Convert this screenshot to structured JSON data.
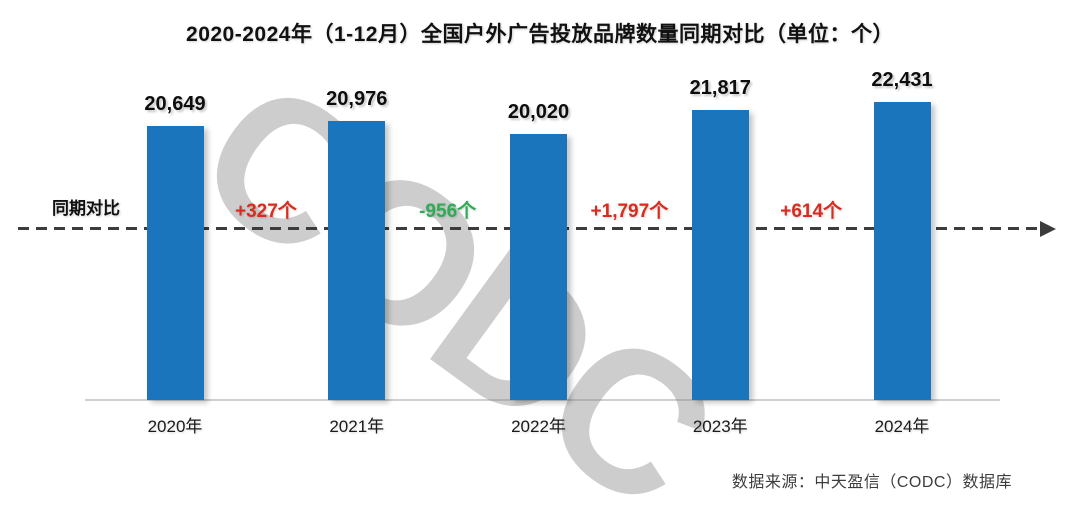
{
  "title": "2020-2024年（1-12月）全国户外广告投放品牌数量同期对比（单位：个）",
  "comparison_row_label": "同期对比",
  "source": "数据来源：中天盈信（CODC）数据库",
  "watermark": "CODC",
  "colors": {
    "bar": "#1a75bc",
    "increase": "#d92b1e",
    "decrease": "#2eac55",
    "dash": "#3c3c3c",
    "axis": "#cfcfcf"
  },
  "chart_data": {
    "type": "bar",
    "title": "2020-2024年（1-12月）全国户外广告投放品牌数量同期对比（单位：个）",
    "categories": [
      "2020年",
      "2021年",
      "2022年",
      "2023年",
      "2024年"
    ],
    "values": [
      20649,
      20976,
      20020,
      21817,
      22431
    ],
    "value_labels": [
      "20,649",
      "20,976",
      "20,020",
      "21,817",
      "22,431"
    ],
    "changes": [
      {
        "label": "+327个",
        "value": 327,
        "direction": "increase"
      },
      {
        "label": "-956个",
        "value": -956,
        "direction": "decrease"
      },
      {
        "label": "+1,797个",
        "value": 1797,
        "direction": "increase"
      },
      {
        "label": "+614个",
        "value": 614,
        "direction": "increase"
      }
    ],
    "xlabel": "",
    "ylabel": "",
    "unit": "个",
    "ylim": [
      0,
      24000
    ],
    "grid": false,
    "legend": "none",
    "annotations": [
      "同期对比 dashed arrow reference line between年份 bars"
    ]
  }
}
